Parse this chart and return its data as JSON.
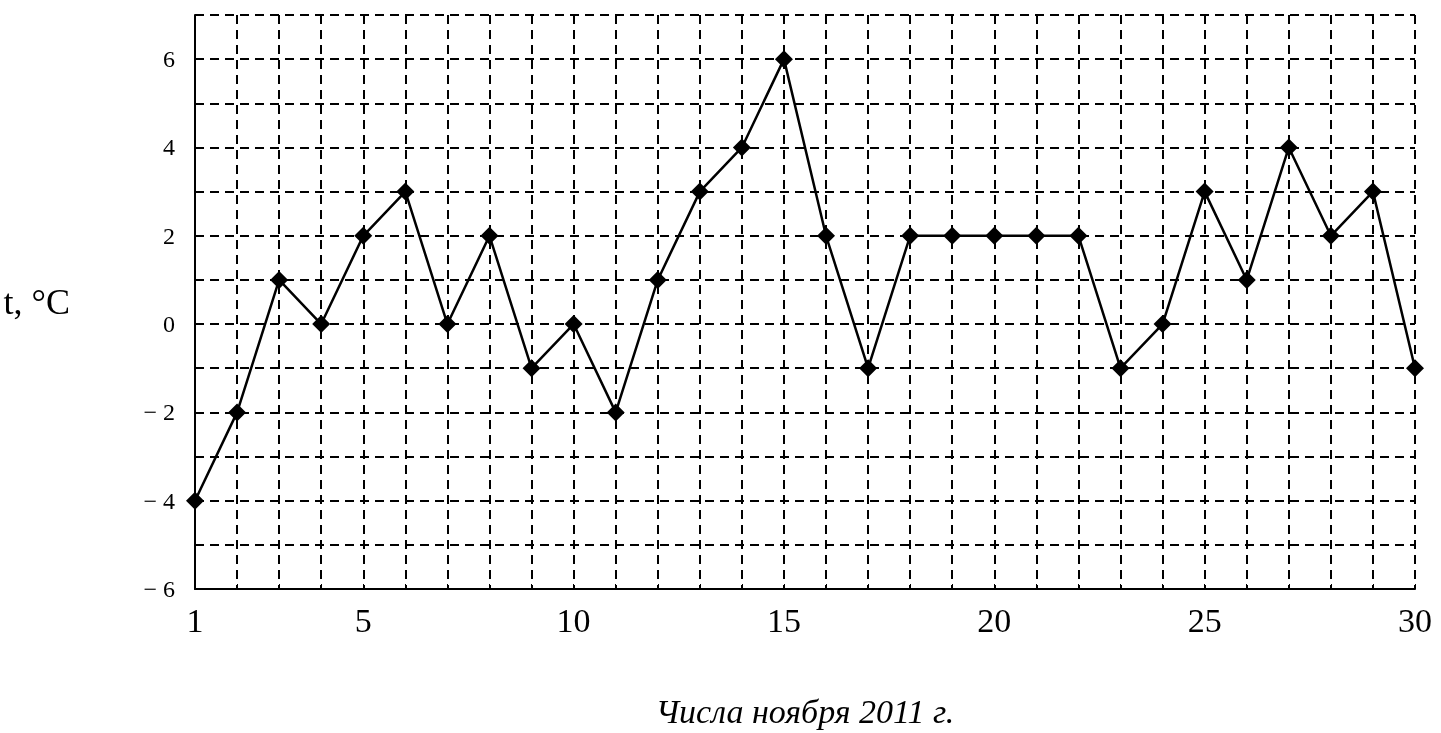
{
  "chart_data": {
    "type": "line",
    "xlabel": "Числа ноября 2011 г.",
    "ylabel": "t, °C",
    "x": [
      1,
      2,
      3,
      4,
      5,
      6,
      7,
      8,
      9,
      10,
      11,
      12,
      13,
      14,
      15,
      16,
      17,
      18,
      19,
      20,
      21,
      22,
      23,
      24,
      25,
      26,
      27,
      28,
      29,
      30
    ],
    "series": [
      {
        "color": "#000000",
        "values": [
          -4,
          -2,
          1,
          0,
          2,
          3,
          0,
          2,
          -1,
          0,
          -2,
          1,
          3,
          4,
          6,
          2,
          -1,
          2,
          2,
          2,
          2,
          2,
          -1,
          0,
          3,
          1,
          4,
          2,
          3,
          -1
        ]
      }
    ],
    "xlim": [
      1,
      30
    ],
    "xticks": [
      1,
      {
        "value": 2,
        "label": null
      },
      {
        "value": 3,
        "label": null
      },
      {
        "value": 4,
        "label": null
      },
      5,
      {
        "value": 6,
        "label": null
      },
      {
        "value": 7,
        "label": null
      },
      {
        "value": 8,
        "label": null
      },
      {
        "value": 9,
        "label": null
      },
      10,
      {
        "value": 11,
        "label": null
      },
      {
        "value": 12,
        "label": null
      },
      {
        "value": 13,
        "label": null
      },
      {
        "value": 14,
        "label": null
      },
      15,
      {
        "value": 16,
        "label": null
      },
      {
        "value": 17,
        "label": null
      },
      {
        "value": 18,
        "label": null
      },
      {
        "value": 19,
        "label": null
      },
      20,
      {
        "value": 21,
        "label": null
      },
      {
        "value": 22,
        "label": null
      },
      {
        "value": 23,
        "label": null
      },
      {
        "value": 24,
        "label": null
      },
      25,
      {
        "value": 26,
        "label": null
      },
      {
        "value": 27,
        "label": null
      },
      {
        "value": 28,
        "label": null
      },
      {
        "value": 29,
        "label": null
      },
      30
    ],
    "ylim": [
      -6,
      7
    ],
    "yticks": [
      -6,
      {
        "value": -5,
        "label": null
      },
      -4,
      {
        "value": -3,
        "label": null
      },
      -2,
      {
        "value": -1,
        "label": null
      },
      0,
      {
        "value": 1,
        "label": null
      },
      2,
      {
        "value": 3,
        "label": null
      },
      4,
      {
        "value": 5,
        "label": null
      },
      6,
      {
        "value": 7,
        "label": null
      }
    ],
    "grid": true,
    "marker": "diamond",
    "line_style": "solid"
  }
}
